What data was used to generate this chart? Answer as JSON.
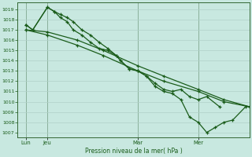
{
  "xlabel": "Pression niveau de la mer( hPa )",
  "bg_color": "#c8e8e0",
  "grid_color": "#b0d0c8",
  "line_color": "#1a5c1a",
  "ylim": [
    1006.5,
    1019.7
  ],
  "yticks": [
    1007,
    1008,
    1009,
    1010,
    1011,
    1012,
    1013,
    1014,
    1015,
    1016,
    1017,
    1018,
    1019
  ],
  "xlim": [
    0,
    27
  ],
  "xtick_positions": [
    1,
    3.5,
    14,
    21
  ],
  "xtick_labels": [
    "Lun",
    "Jeu",
    "Mar",
    "Mer"
  ],
  "vline_positions": [
    1,
    3.5,
    14,
    21
  ],
  "series1_x": [
    1,
    1.8,
    3.5,
    4.3,
    5.0,
    5.8,
    6.5,
    7.5,
    8.5,
    9.5,
    10.5,
    11.5,
    12.0,
    13.0,
    14.0,
    15.0,
    16.0,
    17.0,
    18.0,
    19.0,
    20.0,
    21.0,
    22.0,
    23.5
  ],
  "series1_y": [
    1017.5,
    1017.0,
    1019.2,
    1018.8,
    1018.5,
    1018.2,
    1017.8,
    1017.0,
    1016.5,
    1015.8,
    1015.2,
    1014.5,
    1014.0,
    1013.2,
    1013.0,
    1012.5,
    1011.8,
    1011.2,
    1011.0,
    1011.2,
    1010.5,
    1010.2,
    1010.5,
    1009.5
  ],
  "series2_x": [
    1,
    3.5,
    7,
    10,
    14,
    17,
    21,
    24,
    27
  ],
  "series2_y": [
    1017.0,
    1016.8,
    1016.0,
    1015.0,
    1013.5,
    1012.5,
    1011.2,
    1010.2,
    1009.5
  ],
  "series3_x": [
    1,
    3.5,
    7,
    10,
    14,
    17,
    21,
    24,
    27
  ],
  "series3_y": [
    1017.0,
    1016.5,
    1015.5,
    1014.5,
    1013.0,
    1012.0,
    1011.0,
    1010.0,
    1009.5
  ],
  "series4_x": [
    1,
    1.8,
    3.5,
    4.3,
    5.0,
    5.8,
    6.5,
    7.5,
    8.5,
    9.5,
    10.5,
    11.5,
    12.0,
    13.0,
    14.0,
    15.0,
    16.0,
    17.0,
    18.0,
    19.0,
    20.0,
    21.0,
    22.0,
    23.0,
    24.0,
    25.0,
    26.5
  ],
  "series4_y": [
    1017.5,
    1017.0,
    1019.2,
    1018.8,
    1018.2,
    1017.8,
    1017.0,
    1016.5,
    1015.8,
    1015.2,
    1015.0,
    1014.5,
    1014.0,
    1013.2,
    1013.0,
    1012.5,
    1011.5,
    1011.0,
    1010.8,
    1010.2,
    1008.5,
    1008.0,
    1007.0,
    1007.5,
    1008.0,
    1008.2,
    1009.5
  ]
}
